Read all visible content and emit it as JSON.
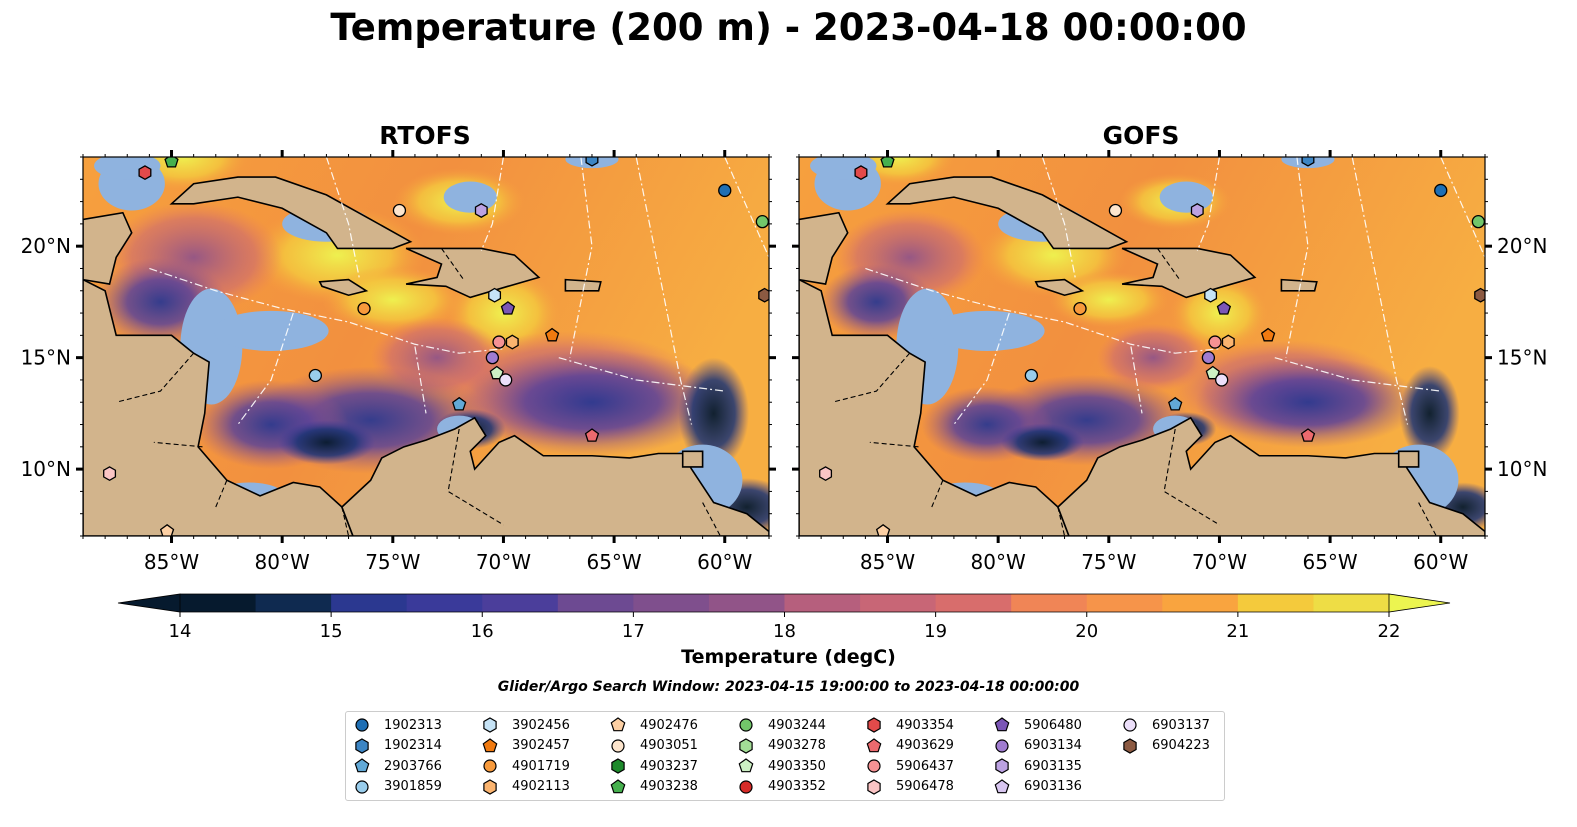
{
  "title": "Temperature (200 m) - 2023-04-18 00:00:00",
  "panels": [
    {
      "title": "RTOFS"
    },
    {
      "title": "GOFS"
    }
  ],
  "axes": {
    "lon_range": [
      -89,
      -58
    ],
    "lat_range": [
      7,
      24
    ],
    "xticks": [
      {
        "value": -85,
        "label": "85°W"
      },
      {
        "value": -80,
        "label": "80°W"
      },
      {
        "value": -75,
        "label": "75°W"
      },
      {
        "value": -70,
        "label": "70°W"
      },
      {
        "value": -65,
        "label": "65°W"
      },
      {
        "value": -60,
        "label": "60°W"
      }
    ],
    "yticks": [
      {
        "value": 20,
        "label": "20°N"
      },
      {
        "value": 15,
        "label": "15°N"
      },
      {
        "value": 10,
        "label": "10°N"
      }
    ]
  },
  "colorbar": {
    "title": "Temperature (degC)",
    "min": 14,
    "max": 22,
    "ticks": [
      {
        "value": 14,
        "label": "14"
      },
      {
        "value": 15,
        "label": "15"
      },
      {
        "value": 16,
        "label": "16"
      },
      {
        "value": 17,
        "label": "17"
      },
      {
        "value": 18,
        "label": "18"
      },
      {
        "value": 19,
        "label": "19"
      },
      {
        "value": 20,
        "label": "20"
      },
      {
        "value": 21,
        "label": "21"
      },
      {
        "value": 22,
        "label": "22"
      }
    ],
    "colors": [
      "#061a2e",
      "#0f2a50",
      "#1c3475",
      "#2b3890",
      "#3a3a9a",
      "#4b3e9b",
      "#5c4397",
      "#6d4a92",
      "#7f4f8d",
      "#915488",
      "#a45a83",
      "#b65f7d",
      "#c86676",
      "#d86d6c",
      "#e67862",
      "#f08556",
      "#f6944a",
      "#f9a43f",
      "#f9b63a",
      "#f4ca3c",
      "#eedd45"
    ],
    "extend_low_color": "#061a2e",
    "extend_high_color": "#ecf550"
  },
  "search_window": "Glider/Argo Search Window: 2023-04-15 19:00:00 to 2023-04-18 00:00:00",
  "legend": [
    {
      "id": "1902313",
      "marker": "circle",
      "color": "#1f6fb4"
    },
    {
      "id": "1902314",
      "marker": "hexagon",
      "color": "#3c85c4"
    },
    {
      "id": "2903766",
      "marker": "pentagon",
      "color": "#62a9d7"
    },
    {
      "id": "3901859",
      "marker": "circle",
      "color": "#99cdec"
    },
    {
      "id": "3902456",
      "marker": "hexagon",
      "color": "#c6e3f6"
    },
    {
      "id": "3902457",
      "marker": "pentagon",
      "color": "#f07a10"
    },
    {
      "id": "4901719",
      "marker": "circle",
      "color": "#f79a3c"
    },
    {
      "id": "4902113",
      "marker": "hexagon",
      "color": "#fbb46f"
    },
    {
      "id": "4902476",
      "marker": "pentagon",
      "color": "#fdd0a4"
    },
    {
      "id": "4903051",
      "marker": "circle",
      "color": "#fde5cd"
    },
    {
      "id": "4903237",
      "marker": "hexagon",
      "color": "#1d8a2b"
    },
    {
      "id": "4903238",
      "marker": "pentagon",
      "color": "#46b04e"
    },
    {
      "id": "4903244",
      "marker": "circle",
      "color": "#72c66a"
    },
    {
      "id": "4903278",
      "marker": "hexagon",
      "color": "#a3dd96"
    },
    {
      "id": "4903350",
      "marker": "pentagon",
      "color": "#cdf0c4"
    },
    {
      "id": "4903352",
      "marker": "circle",
      "color": "#d62b28"
    },
    {
      "id": "4903354",
      "marker": "hexagon",
      "color": "#e24a4a"
    },
    {
      "id": "4903629",
      "marker": "pentagon",
      "color": "#ec6a6e"
    },
    {
      "id": "5906437",
      "marker": "circle",
      "color": "#f59294"
    },
    {
      "id": "5906478",
      "marker": "hexagon",
      "color": "#fbc5c5"
    },
    {
      "id": "5906480",
      "marker": "pentagon",
      "color": "#7b56b6"
    },
    {
      "id": "6903134",
      "marker": "circle",
      "color": "#a07cd0"
    },
    {
      "id": "6903135",
      "marker": "hexagon",
      "color": "#bca2e2"
    },
    {
      "id": "6903136",
      "marker": "pentagon",
      "color": "#d8c6f0"
    },
    {
      "id": "6903137",
      "marker": "circle",
      "color": "#ecdffa"
    },
    {
      "id": "6904223",
      "marker": "hexagon",
      "color": "#8c5a42"
    }
  ],
  "observations": [
    {
      "id": "1902313",
      "lon": -60.0,
      "lat": 22.5
    },
    {
      "id": "1902314",
      "lon": -66.0,
      "lat": 23.9
    },
    {
      "id": "2903766",
      "lon": -72.0,
      "lat": 12.9
    },
    {
      "id": "3901859",
      "lon": -78.5,
      "lat": 14.2
    },
    {
      "id": "3902456",
      "lon": -70.4,
      "lat": 17.8
    },
    {
      "id": "3902457",
      "lon": -67.8,
      "lat": 16.0
    },
    {
      "id": "4901719",
      "lon": -76.3,
      "lat": 17.2
    },
    {
      "id": "4902113",
      "lon": -69.6,
      "lat": 15.7
    },
    {
      "id": "4902476",
      "lon": -85.2,
      "lat": 7.2
    },
    {
      "id": "4903051",
      "lon": -74.7,
      "lat": 21.6
    },
    {
      "id": "4903238",
      "lon": -85.0,
      "lat": 23.8
    },
    {
      "id": "4903244",
      "lon": -58.3,
      "lat": 21.1
    },
    {
      "id": "4903350",
      "lon": -70.3,
      "lat": 14.3
    },
    {
      "id": "4903354",
      "lon": -86.2,
      "lat": 23.3
    },
    {
      "id": "4903629",
      "lon": -66.0,
      "lat": 11.5
    },
    {
      "id": "5906437",
      "lon": -70.2,
      "lat": 15.7
    },
    {
      "id": "5906478",
      "lon": -87.8,
      "lat": 9.8
    },
    {
      "id": "5906480",
      "lon": -69.8,
      "lat": 17.2
    },
    {
      "id": "6903134",
      "lon": -70.5,
      "lat": 15.0
    },
    {
      "id": "6903135",
      "lon": -71.0,
      "lat": 21.6
    },
    {
      "id": "6903137",
      "lon": -69.9,
      "lat": 14.0
    },
    {
      "id": "6904223",
      "lon": -58.2,
      "lat": 17.8
    }
  ]
}
